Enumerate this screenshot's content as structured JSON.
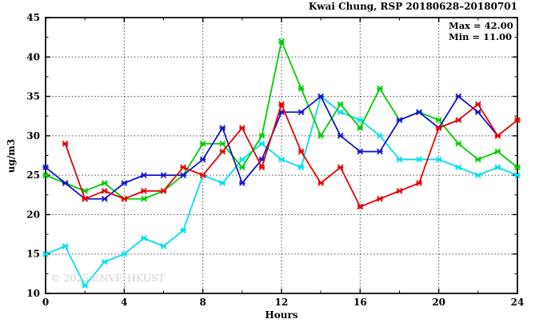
{
  "chart_data": {
    "type": "line",
    "title": "Kwai Chung, RSP 20180628–20180701",
    "xlabel": "Hours",
    "ylabel": "ug/m3",
    "xlim": [
      0,
      24
    ],
    "ylim": [
      10,
      45
    ],
    "xticks": [
      0,
      4,
      8,
      12,
      16,
      20,
      24
    ],
    "yticks": [
      10,
      15,
      20,
      25,
      30,
      35,
      40,
      45
    ],
    "x_minor_ticks": [
      2,
      6,
      10,
      14,
      18,
      22
    ],
    "y_minor_ticks": [
      12.5,
      17.5,
      22.5,
      27.5,
      32.5,
      37.5,
      42.5
    ],
    "grid": true,
    "legend_position": "none",
    "annotations": {
      "max_label": "Max = 42.00",
      "min_label": "Min = 11.00"
    },
    "watermark": "© 2025 ENVF, HKUST",
    "series": [
      {
        "name": "cyan-line",
        "color": "#00e0ee",
        "x_start": 0,
        "values": [
          15,
          16,
          11,
          14,
          15,
          17,
          16,
          18,
          25,
          24,
          27,
          29,
          27,
          26,
          35,
          33,
          32,
          30,
          27,
          27,
          27,
          26,
          25,
          26,
          25
        ]
      },
      {
        "name": "green-line",
        "color": "#00cc00",
        "x_start": 0,
        "values": [
          25,
          24,
          23,
          24,
          22,
          22,
          23,
          25,
          29,
          29,
          26,
          30,
          42,
          36,
          30,
          34,
          31,
          36,
          32,
          33,
          32,
          29,
          27,
          28,
          26
        ]
      },
      {
        "name": "blue-line",
        "color": "#1414cc",
        "x_start": 0,
        "values": [
          26,
          24,
          22,
          22,
          24,
          25,
          25,
          25,
          27,
          31,
          24,
          27,
          33,
          33,
          35,
          30,
          28,
          28,
          32,
          33,
          31,
          35,
          33,
          30
        ]
      },
      {
        "name": "red-line",
        "color": "#e60000",
        "x_start": 1,
        "values": [
          29,
          22,
          23,
          22,
          23,
          23,
          26,
          25,
          28,
          31,
          26,
          34,
          28,
          24,
          26,
          21,
          22,
          23,
          24,
          31,
          32,
          34,
          30,
          32
        ]
      }
    ]
  }
}
